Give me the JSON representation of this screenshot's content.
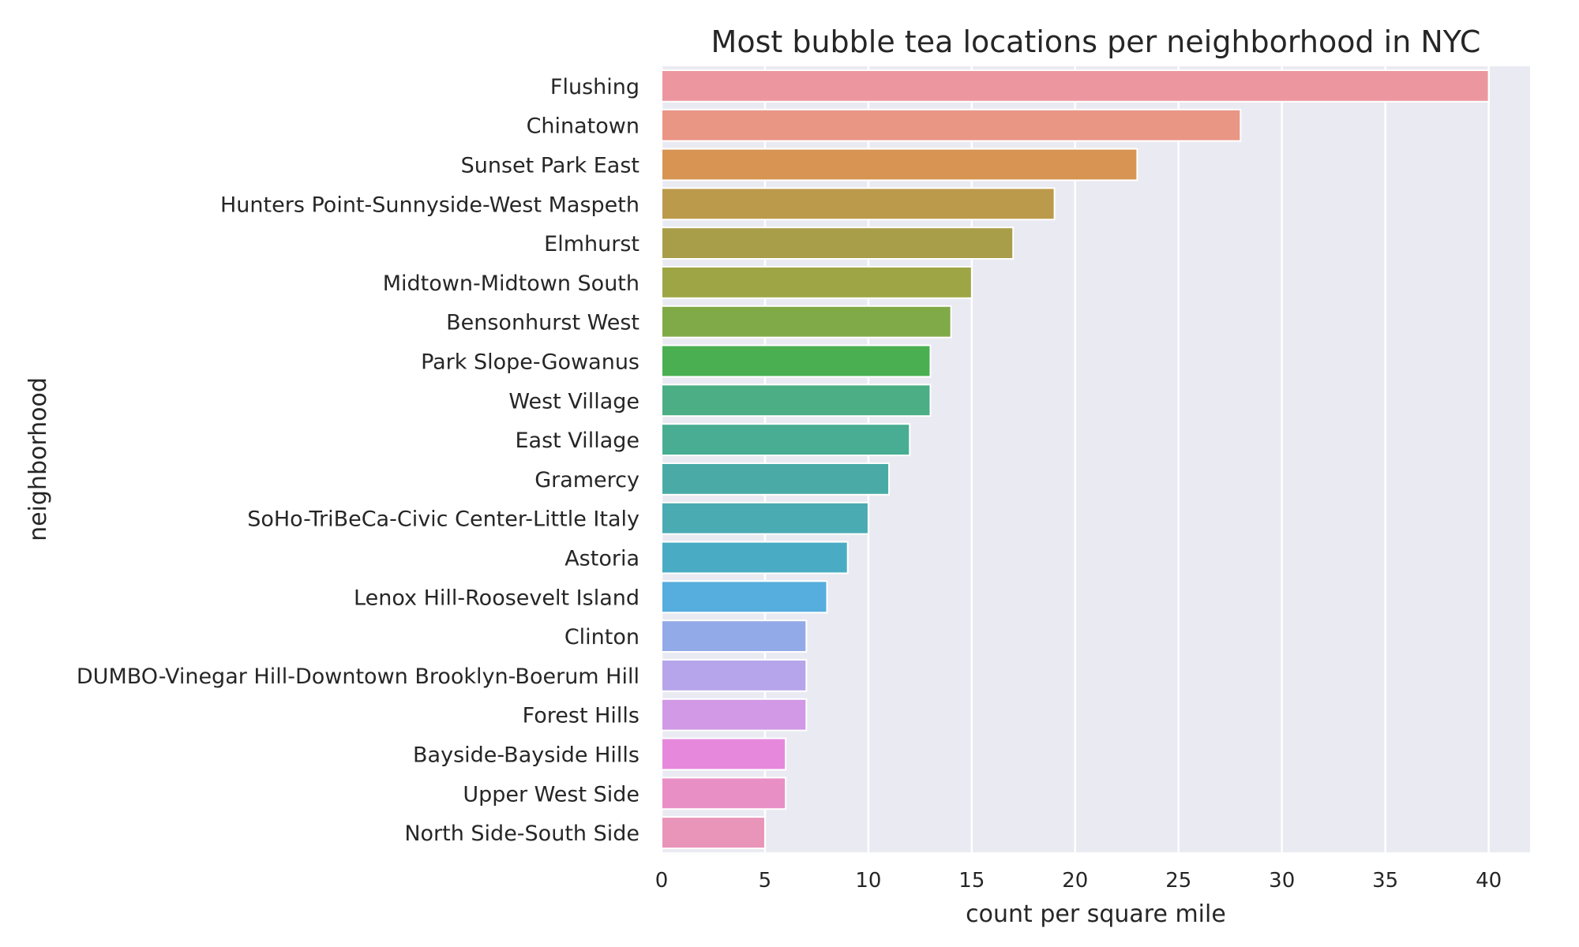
{
  "chart_data": {
    "type": "bar",
    "orientation": "horizontal",
    "title": "Most bubble tea locations per neighborhood in NYC",
    "xlabel": "count per square mile",
    "ylabel": "neighborhood",
    "xlim": [
      0,
      42
    ],
    "xticks": [
      0,
      5,
      10,
      15,
      20,
      25,
      30,
      35,
      40
    ],
    "grid": true,
    "background": "#eaeaf2",
    "categories": [
      "Flushing",
      "Chinatown",
      "Sunset Park East",
      "Hunters Point-Sunnyside-West Maspeth",
      "Elmhurst",
      "Midtown-Midtown South",
      "Bensonhurst West",
      "Park Slope-Gowanus",
      "West Village",
      "East Village",
      "Gramercy",
      "SoHo-TriBeCa-Civic Center-Little Italy",
      "Astoria",
      "Lenox Hill-Roosevelt Island",
      "Clinton",
      "DUMBO-Vinegar Hill-Downtown Brooklyn-Boerum Hill",
      "Forest Hills",
      "Bayside-Bayside Hills",
      "Upper West Side",
      "North Side-South Side"
    ],
    "values": [
      40,
      28,
      23,
      19,
      17,
      15,
      14,
      13,
      13,
      12,
      11,
      10,
      9,
      8,
      7,
      7,
      7,
      6,
      6,
      5
    ],
    "colors": [
      "#ec97a0",
      "#e99685",
      "#d79452",
      "#bb9a4b",
      "#a89e49",
      "#9da545",
      "#80aa47",
      "#4aaf51",
      "#4bae84",
      "#49ad93",
      "#4aaba6",
      "#4aabb2",
      "#4aacc4",
      "#55aedd",
      "#93aae8",
      "#b6a5ea",
      "#d199e6",
      "#e689dc",
      "#e88fc6",
      "#e994b9"
    ]
  }
}
